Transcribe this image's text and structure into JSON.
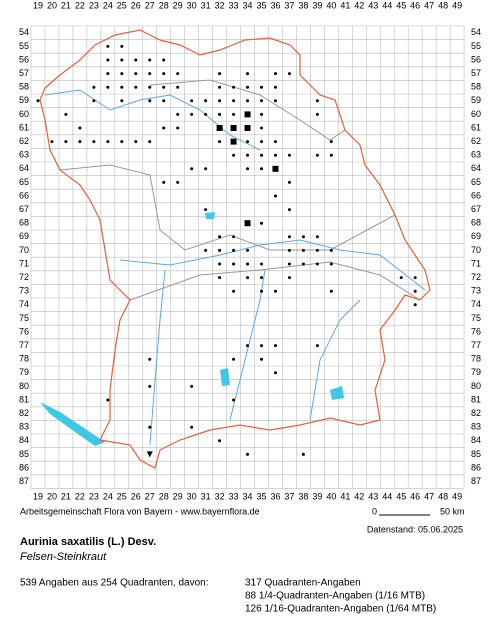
{
  "grid": {
    "columns": [
      19,
      20,
      21,
      22,
      23,
      24,
      25,
      26,
      27,
      28,
      29,
      30,
      31,
      32,
      33,
      34,
      35,
      36,
      37,
      38,
      39,
      40,
      41,
      42,
      43,
      44,
      45,
      46,
      47,
      48,
      49
    ],
    "rows": [
      54,
      55,
      56,
      57,
      58,
      59,
      60,
      61,
      62,
      63,
      64,
      65,
      66,
      67,
      68,
      69,
      70,
      71,
      72,
      73,
      74,
      75,
      76,
      77,
      78,
      79,
      80,
      81,
      82,
      83,
      84,
      85,
      86,
      87
    ]
  },
  "credit": "Arbeitsgemeinschaft Flora von Bayern - www.bayernflora.de",
  "scale": {
    "start": "0",
    "end": "50 km"
  },
  "date": "Datenstand: 05.06.2025",
  "species": {
    "name": "Aurinia saxatilis (L.) Desv.",
    "common": "Felsen-Steinkraut"
  },
  "summary": {
    "total": "539 Angaben aus 254 Quadranten, davon:",
    "lines": [
      "317 Quadranten-Angaben",
      "88 1/4-Quadranten-Angaben (1/16 MTB)",
      "126 1/16-Quadranten-Angaben (1/64 MTB)"
    ]
  }
}
